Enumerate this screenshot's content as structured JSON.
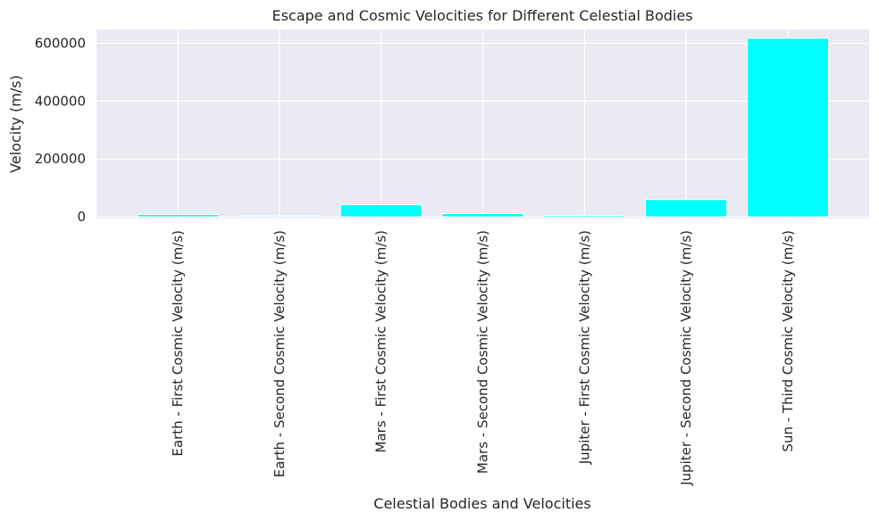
{
  "chart_data": {
    "type": "bar",
    "title": "Escape and Cosmic Velocities for Different Celestial Bodies",
    "xlabel": "Celestial Bodies and Velocities",
    "ylabel": "Velocity (m/s)",
    "categories": [
      "Earth - First Cosmic Velocity (m/s)",
      "Earth - Second Cosmic Velocity (m/s)",
      "Mars - First Cosmic Velocity (m/s)",
      "Mars - Second Cosmic Velocity (m/s)",
      "Jupiter - First Cosmic Velocity (m/s)",
      "Jupiter - Second Cosmic Velocity (m/s)",
      "Sun - Third Cosmic Velocity (m/s)"
    ],
    "values": [
      7900,
      3600,
      42100,
      11200,
      5000,
      59500,
      617700
    ],
    "ylim": [
      -6000,
      648000
    ],
    "yticks": [
      0,
      200000,
      400000,
      600000
    ],
    "ytick_labels": [
      "0",
      "200000",
      "400000",
      "600000"
    ],
    "grid": true,
    "colors": {
      "bar": "#00ffff",
      "plot_background": "#eaeaf2",
      "grid": "#ffffff",
      "text": "#262626"
    }
  }
}
